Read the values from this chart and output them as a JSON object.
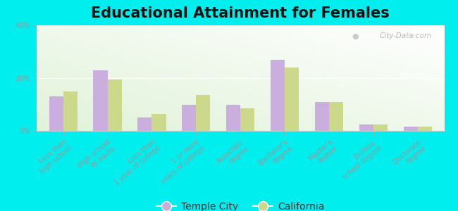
{
  "title": "Educational Attainment for Females",
  "categories": [
    "Less than\nhigh school",
    "High school\nor equiv.",
    "Less than\n1 year of college",
    "1 or more\nyears of college",
    "Associate\ndegree",
    "Bachelor's\ndegree",
    "Master's\ndegree",
    "Profess.\nschool degree",
    "Doctorate\ndegree"
  ],
  "temple_city": [
    13,
    23,
    5,
    10,
    10,
    27,
    11,
    2.5,
    1.5
  ],
  "california": [
    15,
    19.5,
    6.5,
    13.5,
    8.5,
    24,
    11,
    2.5,
    1.5
  ],
  "temple_city_color": "#c9aede",
  "california_color": "#cdd98a",
  "background_outer": "#00eeee",
  "background_inner_color1": "#d4ecc4",
  "background_inner_color2": "#f8faf0",
  "ylim": [
    0,
    40
  ],
  "yticks": [
    0,
    20,
    40
  ],
  "ytick_labels": [
    "0%",
    "20%",
    "40%"
  ],
  "watermark": "City-Data.com",
  "legend_temple": "Temple City",
  "legend_california": "California",
  "title_fontsize": 15,
  "tick_fontsize": 7,
  "legend_fontsize": 10,
  "bar_width": 0.32
}
